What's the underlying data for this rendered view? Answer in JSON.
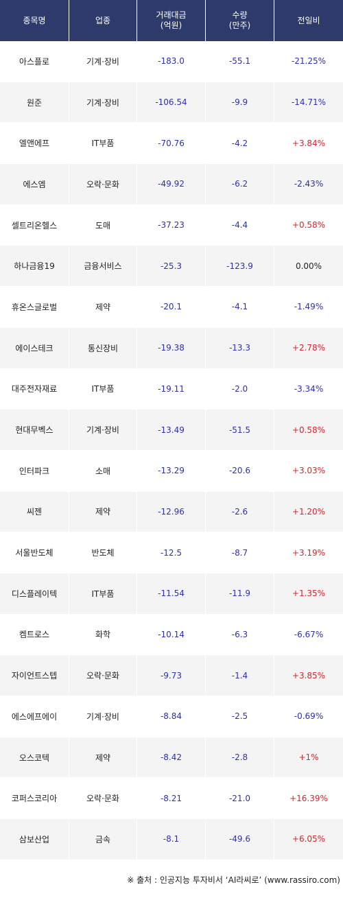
{
  "header": {
    "col_name": "종목명",
    "col_sector": "업종",
    "col_amount_l1": "거래대금",
    "col_amount_l2": "(억원)",
    "col_volume_l1": "수량",
    "col_volume_l2": "(만주)",
    "col_change": "전일비"
  },
  "rows": [
    {
      "name": "아스플로",
      "sector": "기계·장비",
      "amount": "-183.0",
      "volume": "-55.1",
      "change": "-21.25%",
      "dir": "neg"
    },
    {
      "name": "원준",
      "sector": "기계·장비",
      "amount": "-106.54",
      "volume": "-9.9",
      "change": "-14.71%",
      "dir": "neg"
    },
    {
      "name": "엘앤에프",
      "sector": "IT부품",
      "amount": "-70.76",
      "volume": "-4.2",
      "change": "+3.84%",
      "dir": "pos"
    },
    {
      "name": "에스엠",
      "sector": "오락·문화",
      "amount": "-49.92",
      "volume": "-6.2",
      "change": "-2.43%",
      "dir": "neg"
    },
    {
      "name": "셀트리온헬스",
      "sector": "도매",
      "amount": "-37.23",
      "volume": "-4.4",
      "change": "+0.58%",
      "dir": "pos"
    },
    {
      "name": "하나금융19",
      "sector": "금융서비스",
      "amount": "-25.3",
      "volume": "-123.9",
      "change": "0.00%",
      "dir": "zero"
    },
    {
      "name": "휴온스글로벌",
      "sector": "제약",
      "amount": "-20.1",
      "volume": "-4.1",
      "change": "-1.49%",
      "dir": "neg"
    },
    {
      "name": "에이스테크",
      "sector": "통신장비",
      "amount": "-19.38",
      "volume": "-13.3",
      "change": "+2.78%",
      "dir": "pos"
    },
    {
      "name": "대주전자재료",
      "sector": "IT부품",
      "amount": "-19.11",
      "volume": "-2.0",
      "change": "-3.34%",
      "dir": "neg"
    },
    {
      "name": "현대무벡스",
      "sector": "기계·장비",
      "amount": "-13.49",
      "volume": "-51.5",
      "change": "+0.58%",
      "dir": "pos"
    },
    {
      "name": "인터파크",
      "sector": "소매",
      "amount": "-13.29",
      "volume": "-20.6",
      "change": "+3.03%",
      "dir": "pos"
    },
    {
      "name": "씨젠",
      "sector": "제약",
      "amount": "-12.96",
      "volume": "-2.6",
      "change": "+1.20%",
      "dir": "pos"
    },
    {
      "name": "서울반도체",
      "sector": "반도체",
      "amount": "-12.5",
      "volume": "-8.7",
      "change": "+3.19%",
      "dir": "pos"
    },
    {
      "name": "디스플레이텍",
      "sector": "IT부품",
      "amount": "-11.54",
      "volume": "-11.9",
      "change": "+1.35%",
      "dir": "pos"
    },
    {
      "name": "켐트로스",
      "sector": "화학",
      "amount": "-10.14",
      "volume": "-6.3",
      "change": "-6.67%",
      "dir": "neg"
    },
    {
      "name": "자이언트스텝",
      "sector": "오락·문화",
      "amount": "-9.73",
      "volume": "-1.4",
      "change": "+3.85%",
      "dir": "pos"
    },
    {
      "name": "에스에프에이",
      "sector": "기계·장비",
      "amount": "-8.84",
      "volume": "-2.5",
      "change": "-0.69%",
      "dir": "neg"
    },
    {
      "name": "오스코텍",
      "sector": "제약",
      "amount": "-8.42",
      "volume": "-2.8",
      "change": "+1%",
      "dir": "pos"
    },
    {
      "name": "코퍼스코리아",
      "sector": "오락·문화",
      "amount": "-8.21",
      "volume": "-21.0",
      "change": "+16.39%",
      "dir": "pos"
    },
    {
      "name": "삼보산업",
      "sector": "금속",
      "amount": "-8.1",
      "volume": "-49.6",
      "change": "+6.05%",
      "dir": "pos"
    }
  ],
  "footer": {
    "source": "※ 출처 : 인공지능 투자비서 ‘AI라씨로’ (www.rassiro.com)"
  },
  "colors": {
    "header_bg": "#2e3a6b",
    "negative": "#2b2fb4",
    "positive": "#d4262c",
    "row_alt": "#f4f4f4"
  }
}
